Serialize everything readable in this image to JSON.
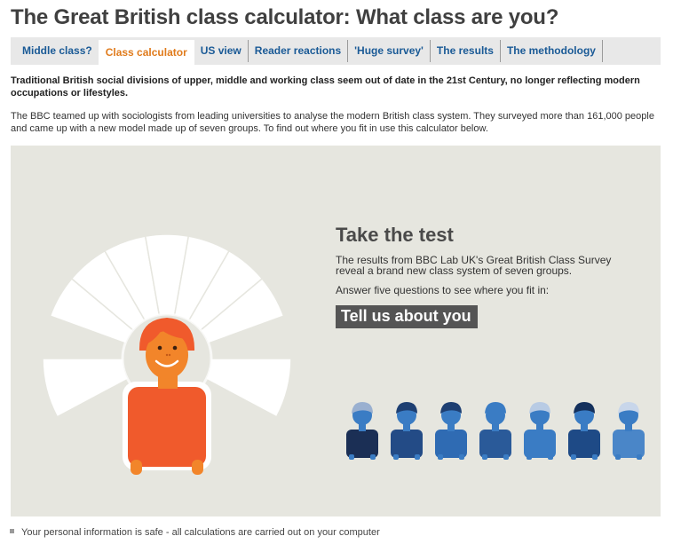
{
  "page": {
    "title": "The Great British class calculator: What class are you?"
  },
  "tabs": [
    {
      "label": "Middle class?",
      "active": false
    },
    {
      "label": "Class calculator",
      "active": true
    },
    {
      "label": "US view",
      "active": false
    },
    {
      "label": "Reader reactions",
      "active": false
    },
    {
      "label": "'Huge survey'",
      "active": false
    },
    {
      "label": "The results",
      "active": false
    },
    {
      "label": "The methodology",
      "active": false
    }
  ],
  "intro": "Traditional British social divisions of upper, middle and working class seem out of date in the 21st Century, no longer reflecting modern occupations or lifestyles.",
  "description": "The BBC teamed up with sociologists from leading universities to analyse the modern British class system. They surveyed more than 161,000 people and came up with a new model made up of seven groups. To find out where you fit in use this calculator below.",
  "calculator": {
    "heading": "Take the test",
    "text": "The results from BBC Lab UK's Great British Class Survey reveal a brand new class system of seven groups.",
    "instruction": "Answer five questions to see where you fit in:",
    "cta_label": "Tell us about you",
    "dial_segments": 7,
    "class_figures": 7
  },
  "footer": {
    "note": "Your personal information is safe - all calculations are carried out on your computer"
  },
  "colors": {
    "title": "#404040",
    "link": "#1a5a96",
    "active_tab": "#e07b1c",
    "panel_bg": "#e6e6df",
    "cta_bg": "#555555",
    "avatar_orange": "#f2852a",
    "avatar_shirt": "#f05a2c",
    "figure_blue": "#3a7cc4"
  }
}
